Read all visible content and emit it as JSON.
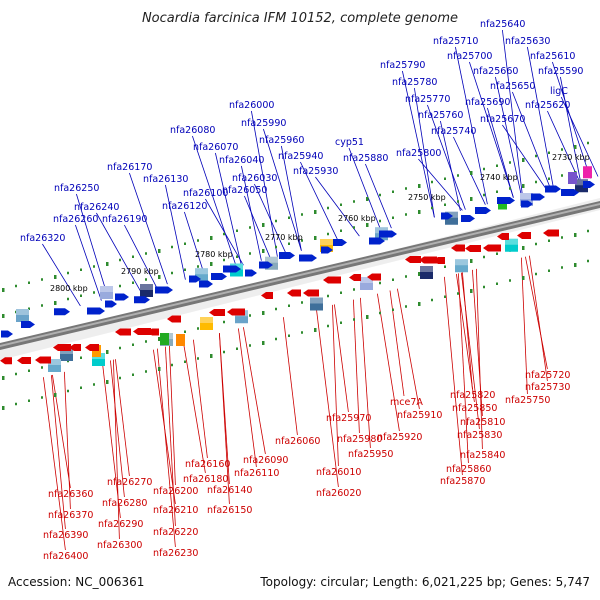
{
  "title": "Nocardia farcinica IFM 10152, complete genome",
  "footer": {
    "accession": "Accession: NC_006361",
    "summary": "Topology: circular; Length: 6,021,225 bp; Genes: 5,747"
  },
  "kbp_ticks": [
    "2730 kbp",
    "2740 kbp",
    "2750 kbp",
    "2760 kbp",
    "2770 kbp",
    "2780 kbp",
    "2790 kbp",
    "2800 kbp"
  ],
  "plus_strand_labels": [
    "nfa25640",
    "nfa25630",
    "nfa25710",
    "nfa25610",
    "nfa25700",
    "nfa25590",
    "nfa25660",
    "nfa25790",
    "nfa25650",
    "ligC",
    "nfa25780",
    "nfa25690",
    "nfa25620",
    "nfa25770",
    "nfa25670",
    "nfa25760",
    "nfa26000",
    "nfa25740",
    "nfa25990",
    "nfa26080",
    "nfa25960",
    "nfa26070",
    "cyp51",
    "nfa25940",
    "nfa25800",
    "nfa26040",
    "nfa25880",
    "nfa26030",
    "nfa26170",
    "nfa25930",
    "nfa26130",
    "nfa26050",
    "nfa26250",
    "nfa26100",
    "nfa26240",
    "nfa26120",
    "nfa26260",
    "nfa26190",
    "nfa26320"
  ],
  "minus_strand_labels": [
    "nfa25720",
    "nfa25730",
    "mce7A",
    "nfa25820",
    "nfa25750",
    "nfa25910",
    "nfa25850",
    "nfa25970",
    "nfa25810",
    "nfa25980",
    "nfa25920",
    "nfa25830",
    "nfa26060",
    "nfa25950",
    "nfa25840",
    "nfa26090",
    "nfa26110",
    "nfa26160",
    "nfa25860",
    "nfa26010",
    "nfa26180",
    "nfa25870",
    "nfa26270",
    "nfa26140",
    "nfa26200",
    "nfa26020",
    "nfa26360",
    "nfa26280",
    "nfa26150",
    "nfa26370",
    "nfa26210",
    "nfa26290",
    "nfa26390",
    "nfa26220",
    "nfa26300",
    "nfa26400",
    "nfa26230"
  ],
  "colors": {
    "plus_gene": "#0022cc",
    "minus_gene": "#dd0000",
    "plus_label": "#0000b8",
    "minus_label": "#cc0000",
    "axis_dark": "#555555",
    "tick_green": "#2e8b2e"
  }
}
